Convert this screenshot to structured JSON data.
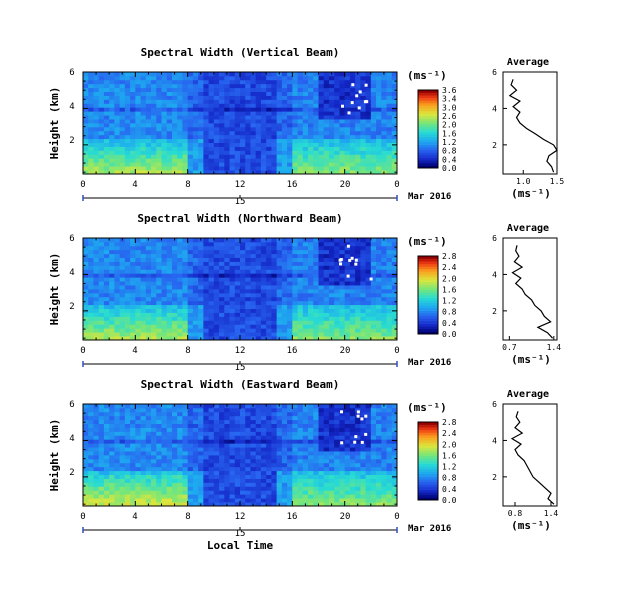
{
  "chart_data": [
    {
      "type": "heatmap",
      "title": "Spectral Width (Vertical Beam)",
      "ylabel": "Height (km)",
      "x_ticks": [
        "0",
        "4",
        "8",
        "12",
        "16",
        "20",
        "0"
      ],
      "y_ticks": [
        "2",
        "4",
        "6"
      ],
      "x_range": [
        0,
        24
      ],
      "y_range": [
        0.4,
        6.0
      ],
      "date_day": "15",
      "date_label": "Mar 2016",
      "colorbar": {
        "unit": "(ms⁻¹)",
        "ticks": [
          "3.6",
          "3.4",
          "3.0",
          "2.6",
          "2.0",
          "1.6",
          "1.2",
          "0.8",
          "0.4",
          "0.0"
        ],
        "min": 0.0,
        "max": 3.6
      },
      "profile": {
        "title": "Average",
        "xlabel": "(ms⁻¹)",
        "x_ticks": [
          "1.0",
          "1.5"
        ],
        "x_range": [
          0.7,
          1.5
        ],
        "y_ticks": [
          "2",
          "4",
          "6"
        ],
        "heights": [
          0.5,
          0.8,
          1.1,
          1.4,
          1.7,
          2.0,
          2.3,
          2.6,
          2.9,
          3.2,
          3.5,
          3.8,
          4.1,
          4.4,
          4.7,
          5.0,
          5.3,
          5.6
        ],
        "values": [
          1.45,
          1.42,
          1.35,
          1.38,
          1.5,
          1.45,
          1.3,
          1.18,
          1.05,
          0.95,
          0.9,
          0.95,
          0.85,
          0.95,
          0.8,
          0.9,
          0.82,
          0.85
        ]
      }
    },
    {
      "type": "heatmap",
      "title": "Spectral Width (Northward Beam)",
      "ylabel": "Height (km)",
      "x_ticks": [
        "0",
        "4",
        "8",
        "12",
        "16",
        "20",
        "0"
      ],
      "y_ticks": [
        "2",
        "4",
        "6"
      ],
      "x_range": [
        0,
        24
      ],
      "y_range": [
        0.4,
        6.0
      ],
      "date_day": "15",
      "date_label": "Mar 2016",
      "colorbar": {
        "unit": "(ms⁻¹)",
        "ticks": [
          "2.8",
          "2.4",
          "2.0",
          "1.6",
          "1.2",
          "0.8",
          "0.4",
          "0.0"
        ],
        "min": 0.0,
        "max": 2.8
      },
      "profile": {
        "title": "Average",
        "xlabel": "(ms⁻¹)",
        "x_ticks": [
          "0.7",
          "1.4"
        ],
        "x_range": [
          0.6,
          1.45
        ],
        "y_ticks": [
          "2",
          "4",
          "6"
        ],
        "heights": [
          0.5,
          0.8,
          1.1,
          1.4,
          1.7,
          2.0,
          2.3,
          2.6,
          2.9,
          3.2,
          3.5,
          3.8,
          4.1,
          4.4,
          4.7,
          5.0,
          5.3,
          5.6
        ],
        "values": [
          1.38,
          1.3,
          1.15,
          1.35,
          1.25,
          1.2,
          1.1,
          1.05,
          0.95,
          0.9,
          0.8,
          0.88,
          0.75,
          0.9,
          0.78,
          0.85,
          0.8,
          0.82
        ]
      }
    },
    {
      "type": "heatmap",
      "title": "Spectral Width (Eastward Beam)",
      "ylabel": "Height (km)",
      "x_ticks": [
        "0",
        "4",
        "8",
        "12",
        "16",
        "20",
        "0"
      ],
      "y_ticks": [
        "2",
        "4",
        "6"
      ],
      "x_range": [
        0,
        24
      ],
      "y_range": [
        0.4,
        6.0
      ],
      "date_day": "15",
      "date_label": "Mar 2016",
      "xlabel": "Local Time",
      "colorbar": {
        "unit": "(ms⁻¹)",
        "ticks": [
          "2.8",
          "2.4",
          "2.0",
          "1.6",
          "1.2",
          "0.8",
          "0.4",
          "0.0"
        ],
        "min": 0.0,
        "max": 2.8
      },
      "profile": {
        "title": "Average",
        "xlabel": "(ms⁻¹)",
        "x_ticks": [
          "0.8",
          "1.4"
        ],
        "x_range": [
          0.6,
          1.5
        ],
        "y_ticks": [
          "2",
          "4",
          "6"
        ],
        "heights": [
          0.5,
          0.8,
          1.1,
          1.4,
          1.7,
          2.0,
          2.3,
          2.6,
          2.9,
          3.2,
          3.5,
          3.8,
          4.1,
          4.4,
          4.7,
          5.0,
          5.3,
          5.6
        ],
        "values": [
          1.45,
          1.35,
          1.4,
          1.3,
          1.2,
          1.1,
          1.05,
          1.0,
          0.95,
          0.85,
          0.8,
          0.9,
          0.75,
          0.92,
          0.8,
          0.88,
          0.82,
          0.85
        ]
      }
    }
  ]
}
